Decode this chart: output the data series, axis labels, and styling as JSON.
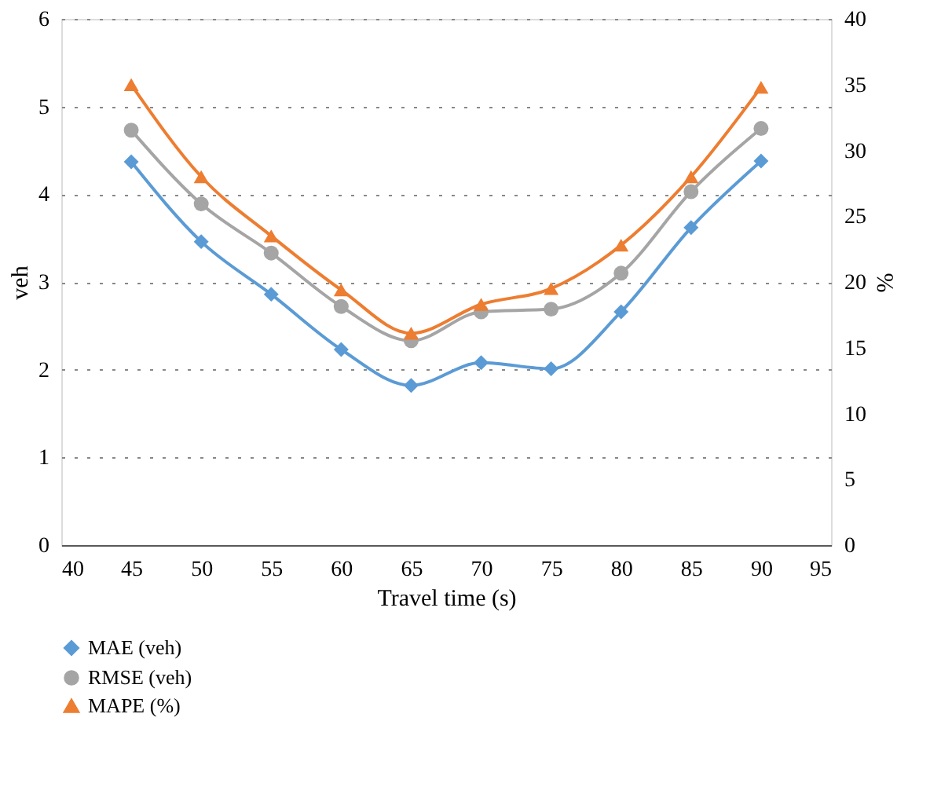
{
  "chart_data": {
    "type": "line",
    "xlabel": "Travel time (s)",
    "ylabel": "veh",
    "y2label": "%",
    "x": [
      45,
      50,
      55,
      60,
      65,
      70,
      75,
      80,
      85,
      90
    ],
    "series": [
      {
        "name": "MAE (veh)",
        "color": "#5b9bd5",
        "marker": "diamond",
        "values": [
          4.37,
          3.46,
          2.86,
          2.23,
          1.82,
          2.08,
          2.01,
          2.66,
          3.62,
          4.38
        ]
      },
      {
        "name": "RMSE (veh)",
        "color": "#a5a5a5",
        "marker": "circle",
        "values": [
          4.73,
          3.89,
          3.33,
          2.72,
          2.33,
          2.66,
          2.69,
          3.1,
          4.03,
          4.75
        ]
      },
      {
        "name": "MAPE (%)",
        "color": "#ed7d31",
        "marker": "triangle",
        "axis": "y2",
        "values": [
          35.0,
          28.0,
          23.5,
          19.4,
          16.1,
          18.3,
          19.5,
          22.8,
          28.0,
          34.8
        ]
      }
    ],
    "xlim": [
      40,
      95
    ],
    "xticks": [
      40,
      45,
      50,
      55,
      60,
      65,
      70,
      75,
      80,
      85,
      90,
      95
    ],
    "ylim": [
      0,
      6
    ],
    "yticks": [
      0,
      1,
      2,
      3,
      4,
      5,
      6
    ],
    "y2lim": [
      0,
      40
    ],
    "y2ticks": [
      0,
      5,
      10,
      15,
      20,
      25,
      30,
      35,
      40
    ],
    "grid": "y",
    "legend": "bottom",
    "line_style": "solid"
  }
}
